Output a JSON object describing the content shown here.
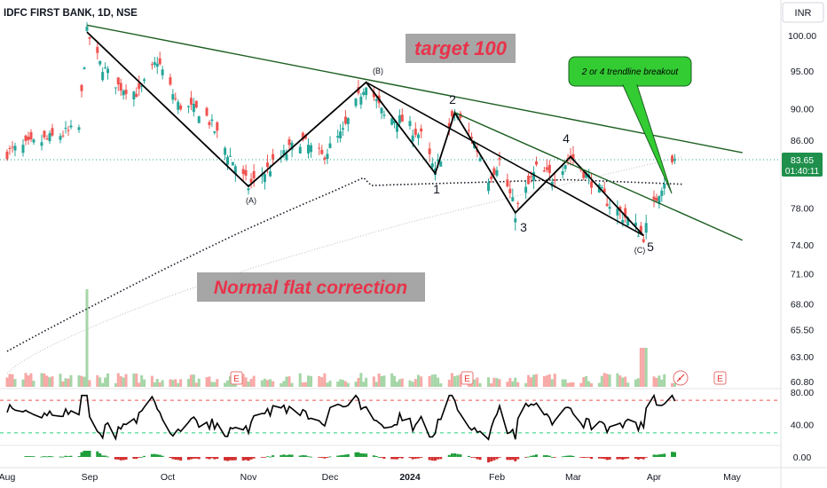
{
  "header": {
    "symbol_line": "IDFC FIRST BANK, 1D, NSE",
    "currency": "INR"
  },
  "annotations": {
    "target": "target 100",
    "correction": "Normal flat correction",
    "breakout_callout": "2 or 4 trendline breakout"
  },
  "wave_labels": [
    "(A)",
    "(B)",
    "1",
    "2",
    "3",
    "4",
    "5",
    "(C)"
  ],
  "price_badge": {
    "price": "83.65",
    "countdown": "01:40:11"
  },
  "colors": {
    "up": "#26a69a",
    "down": "#ef5350",
    "vol_up": "#a5d6a7",
    "vol_down": "#f7a9a7",
    "callout_fill": "#33cc33",
    "label_box": "#a6a6a6",
    "label_red": "#e8334a",
    "badge": "#1f8f4c",
    "rsi_top": "#ef5350",
    "rsi_bottom": "#26d07c"
  },
  "chart_data": {
    "type": "candlestick",
    "x_tick_labels": [
      "Aug",
      "Sep",
      "Oct",
      "Nov",
      "Dec",
      "2024",
      "Feb",
      "Mar",
      "Apr",
      "May"
    ],
    "price_axis_labels": [
      "100.00",
      "95.00",
      "90.00",
      "86.00",
      "78.00",
      "74.00",
      "71.00",
      "68.00",
      "65.50",
      "63.00",
      "60.80"
    ],
    "price_ticks": [
      100,
      95,
      90,
      86,
      78,
      74,
      71,
      68,
      65.5,
      63,
      60.8
    ],
    "price_scale": "log",
    "last_price": 83.65,
    "wave_points": {
      "(A)": {
        "date": "2023-11-01",
        "price": 80.5
      },
      "(B)": {
        "date": "2023-12-15",
        "price": 93.5
      },
      "1": {
        "date": "2024-01-10",
        "price": 82.0
      },
      "2": {
        "date": "2024-01-17",
        "price": 89.5
      },
      "3": {
        "date": "2024-02-08",
        "price": 77.5
      },
      "4": {
        "date": "2024-02-29",
        "price": 84.0
      },
      "5 (C)": {
        "date": "2024-03-28",
        "price": 75.0
      }
    },
    "trendlines": [
      {
        "from": {
          "date": "2023-08-31",
          "price": 101.5
        },
        "to": {
          "date": "2024-05-05",
          "price": 84.5
        }
      },
      {
        "from": {
          "date": "2024-01-17",
          "price": 89.5
        },
        "to": {
          "date": "2024-05-05",
          "price": 74.5
        }
      }
    ],
    "indicator": {
      "name": "RSI",
      "axis_labels": [
        "80.00",
        "40.00"
      ],
      "upper_band": 70,
      "lower_band": 30
    },
    "macd_axis_labels": [
      "0.00"
    ]
  }
}
